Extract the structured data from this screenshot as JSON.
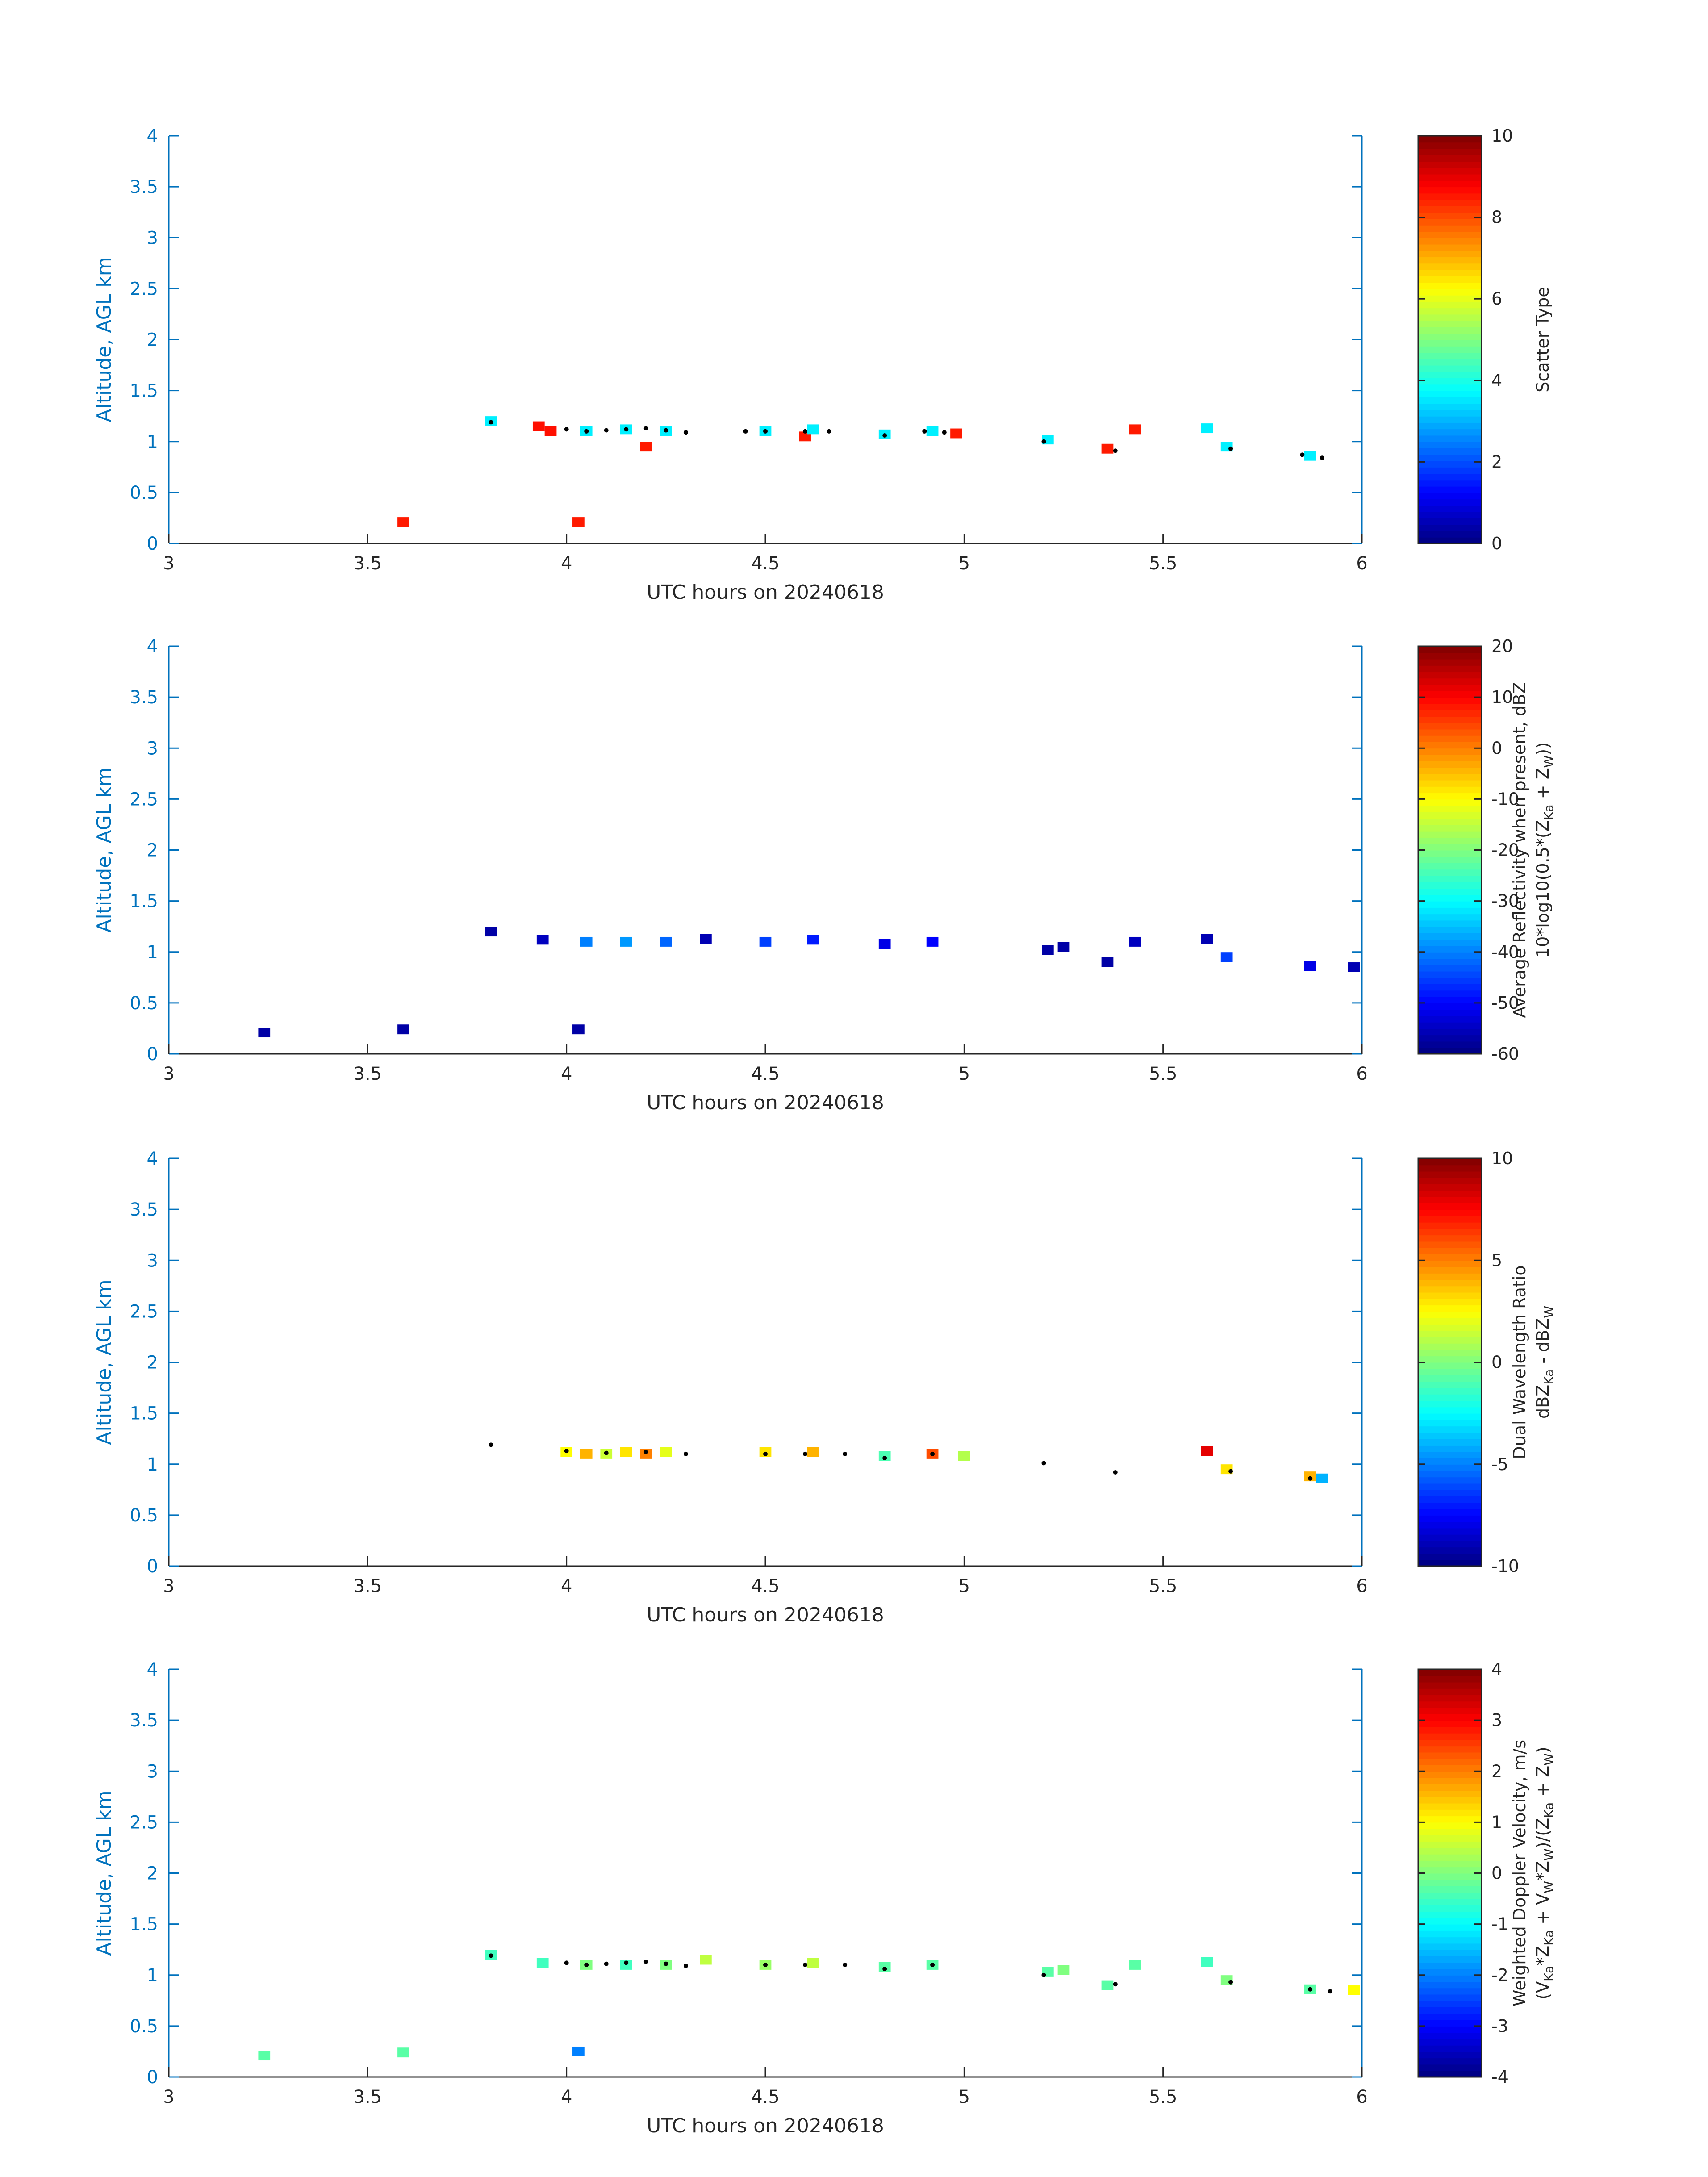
{
  "chart_data": [
    {
      "type": "heatmap",
      "xlabel": "UTC hours on 20240618",
      "ylabel": "Altitude, AGL km",
      "xlim": [
        3,
        6
      ],
      "ylim": [
        0,
        4
      ],
      "xticks": [
        "3",
        "3.5",
        "4",
        "4.5",
        "5",
        "5.5",
        "6"
      ],
      "yticks": [
        "0",
        "0.5",
        "1",
        "1.5",
        "2",
        "2.5",
        "3",
        "3.5",
        "4"
      ],
      "colorbar": {
        "label": [
          "Scatter Type"
        ],
        "range": [
          0,
          10
        ],
        "ticks": [
          "0",
          "2",
          "4",
          "6",
          "8",
          "10"
        ]
      },
      "cells": [
        [
          3.81,
          1.2,
          3.6
        ],
        [
          3.59,
          0.21,
          8.5
        ],
        [
          4.03,
          0.21,
          8.5
        ],
        [
          3.93,
          1.15,
          8.6
        ],
        [
          3.96,
          1.1,
          8.6
        ],
        [
          4.2,
          0.95,
          8.5
        ],
        [
          4.6,
          1.05,
          8.5
        ],
        [
          4.98,
          1.08,
          8.5
        ],
        [
          5.36,
          0.93,
          8.5
        ],
        [
          5.43,
          1.12,
          8.5
        ],
        [
          4.05,
          1.1,
          3.6
        ],
        [
          4.15,
          1.12,
          3.6
        ],
        [
          4.25,
          1.1,
          3.6
        ],
        [
          4.5,
          1.1,
          3.6
        ],
        [
          4.62,
          1.12,
          3.6
        ],
        [
          4.8,
          1.07,
          3.6
        ],
        [
          4.92,
          1.1,
          3.6
        ],
        [
          5.21,
          1.02,
          3.6
        ],
        [
          5.61,
          1.13,
          3.6
        ],
        [
          5.66,
          0.95,
          3.6
        ],
        [
          5.87,
          0.86,
          3.6
        ]
      ],
      "dots": [
        [
          3.81,
          1.19
        ],
        [
          4.0,
          1.12
        ],
        [
          4.05,
          1.1
        ],
        [
          4.1,
          1.11
        ],
        [
          4.15,
          1.12
        ],
        [
          4.2,
          1.13
        ],
        [
          4.25,
          1.11
        ],
        [
          4.3,
          1.09
        ],
        [
          4.45,
          1.1
        ],
        [
          4.5,
          1.1
        ],
        [
          4.6,
          1.1
        ],
        [
          4.66,
          1.1
        ],
        [
          4.8,
          1.06
        ],
        [
          4.9,
          1.1
        ],
        [
          4.95,
          1.09
        ],
        [
          5.2,
          1.0
        ],
        [
          5.38,
          0.91
        ],
        [
          5.67,
          0.93
        ],
        [
          5.85,
          0.87
        ],
        [
          5.9,
          0.84
        ]
      ]
    },
    {
      "type": "heatmap",
      "xlabel": "UTC hours on 20240618",
      "ylabel": "Altitude, AGL km",
      "xlim": [
        3,
        6
      ],
      "ylim": [
        0,
        4
      ],
      "xticks": [
        "3",
        "3.5",
        "4",
        "4.5",
        "5",
        "5.5",
        "6"
      ],
      "yticks": [
        "0",
        "0.5",
        "1",
        "1.5",
        "2",
        "2.5",
        "3",
        "3.5",
        "4"
      ],
      "colorbar": {
        "label": [
          "Average Reflectivity when present, dBZ",
          "10*log10(0.5*(Z",
          "Ka",
          " + Z",
          "W",
          "))"
        ],
        "range": [
          -60,
          20
        ],
        "ticks": [
          "-60",
          "-50",
          "-40",
          "-30",
          "-20",
          "-10",
          "0",
          "10",
          "20"
        ]
      },
      "cells": [
        [
          3.24,
          0.21,
          -57
        ],
        [
          3.59,
          0.24,
          -57
        ],
        [
          4.03,
          0.24,
          -57
        ],
        [
          3.81,
          1.2,
          -57
        ],
        [
          3.94,
          1.12,
          -55
        ],
        [
          4.05,
          1.1,
          -40
        ],
        [
          4.15,
          1.1,
          -38
        ],
        [
          4.25,
          1.1,
          -42
        ],
        [
          4.35,
          1.13,
          -56
        ],
        [
          4.5,
          1.1,
          -45
        ],
        [
          4.62,
          1.12,
          -48
        ],
        [
          4.8,
          1.08,
          -52
        ],
        [
          4.92,
          1.1,
          -50
        ],
        [
          5.21,
          1.02,
          -57
        ],
        [
          5.25,
          1.05,
          -57
        ],
        [
          5.36,
          0.9,
          -57
        ],
        [
          5.43,
          1.1,
          -55
        ],
        [
          5.61,
          1.13,
          -56
        ],
        [
          5.66,
          0.95,
          -45
        ],
        [
          5.87,
          0.86,
          -52
        ],
        [
          5.98,
          0.85,
          -56
        ]
      ],
      "dots": []
    },
    {
      "type": "heatmap",
      "xlabel": "UTC hours on 20240618",
      "ylabel": "Altitude, AGL km",
      "xlim": [
        3,
        6
      ],
      "ylim": [
        0,
        4
      ],
      "xticks": [
        "3",
        "3.5",
        "4",
        "4.5",
        "5",
        "5.5",
        "6"
      ],
      "yticks": [
        "0",
        "0.5",
        "1",
        "1.5",
        "2",
        "2.5",
        "3",
        "3.5",
        "4"
      ],
      "colorbar": {
        "label": [
          "Dual Wavelength Ratio",
          "dBZ",
          "Ka",
          " - dBZ",
          "W"
        ],
        "range": [
          -10,
          10
        ],
        "ticks": [
          "-10",
          "-5",
          "0",
          "5",
          "10"
        ]
      },
      "cells": [
        [
          4.0,
          1.12,
          2.5
        ],
        [
          4.05,
          1.1,
          4.0
        ],
        [
          4.1,
          1.1,
          1.5
        ],
        [
          4.15,
          1.12,
          3.0
        ],
        [
          4.2,
          1.1,
          5.0
        ],
        [
          4.25,
          1.12,
          2.0
        ],
        [
          4.5,
          1.12,
          3.0
        ],
        [
          4.62,
          1.12,
          4.0
        ],
        [
          4.8,
          1.08,
          -1.0
        ],
        [
          4.92,
          1.1,
          6.0
        ],
        [
          5.0,
          1.08,
          1.0
        ],
        [
          5.61,
          1.13,
          8.0
        ],
        [
          5.66,
          0.95,
          3.0
        ],
        [
          5.87,
          0.88,
          4.0
        ],
        [
          5.9,
          0.86,
          -4.0
        ]
      ],
      "dots": [
        [
          3.81,
          1.19
        ],
        [
          4.0,
          1.13
        ],
        [
          4.1,
          1.11
        ],
        [
          4.2,
          1.12
        ],
        [
          4.3,
          1.1
        ],
        [
          4.5,
          1.1
        ],
        [
          4.6,
          1.1
        ],
        [
          4.7,
          1.1
        ],
        [
          4.8,
          1.06
        ],
        [
          4.92,
          1.1
        ],
        [
          5.2,
          1.01
        ],
        [
          5.38,
          0.92
        ],
        [
          5.67,
          0.93
        ],
        [
          5.87,
          0.86
        ]
      ]
    },
    {
      "type": "heatmap",
      "xlabel": "UTC hours on 20240618",
      "ylabel": "Altitude, AGL km",
      "xlim": [
        3,
        6
      ],
      "ylim": [
        0,
        4
      ],
      "xticks": [
        "3",
        "3.5",
        "4",
        "4.5",
        "5",
        "5.5",
        "6"
      ],
      "yticks": [
        "0",
        "0.5",
        "1",
        "1.5",
        "2",
        "2.5",
        "3",
        "3.5",
        "4"
      ],
      "colorbar": {
        "label": [
          "Weighted Doppler Velocity, m/s",
          "(V",
          "Ka",
          "*Z",
          "Ka",
          " + V",
          "W",
          "*Z",
          "W",
          ")/(Z",
          "Ka",
          " + Z",
          "W",
          ")"
        ],
        "range": [
          -4,
          4
        ],
        "ticks": [
          "-4",
          "-3",
          "-2",
          "-1",
          "0",
          "1",
          "2",
          "3",
          "4"
        ]
      },
      "cells": [
        [
          3.24,
          0.21,
          -0.3
        ],
        [
          3.59,
          0.24,
          -0.3
        ],
        [
          4.03,
          0.25,
          -2.0
        ],
        [
          3.81,
          1.2,
          -0.5
        ],
        [
          3.94,
          1.12,
          -0.5
        ],
        [
          4.05,
          1.1,
          0.0
        ],
        [
          4.15,
          1.1,
          -0.5
        ],
        [
          4.25,
          1.1,
          0.0
        ],
        [
          4.35,
          1.15,
          0.5
        ],
        [
          4.5,
          1.1,
          0.2
        ],
        [
          4.62,
          1.12,
          0.5
        ],
        [
          4.8,
          1.08,
          -0.3
        ],
        [
          4.92,
          1.1,
          -0.3
        ],
        [
          5.21,
          1.03,
          -0.3
        ],
        [
          5.25,
          1.05,
          0.0
        ],
        [
          5.36,
          0.9,
          -0.3
        ],
        [
          5.43,
          1.1,
          -0.3
        ],
        [
          5.61,
          1.13,
          -0.5
        ],
        [
          5.66,
          0.95,
          0.0
        ],
        [
          5.87,
          0.86,
          -0.3
        ],
        [
          5.98,
          0.85,
          1.0
        ]
      ],
      "dots": [
        [
          3.81,
          1.19
        ],
        [
          4.0,
          1.12
        ],
        [
          4.05,
          1.1
        ],
        [
          4.1,
          1.11
        ],
        [
          4.15,
          1.12
        ],
        [
          4.2,
          1.13
        ],
        [
          4.25,
          1.11
        ],
        [
          4.3,
          1.09
        ],
        [
          4.5,
          1.1
        ],
        [
          4.6,
          1.1
        ],
        [
          4.7,
          1.1
        ],
        [
          4.8,
          1.06
        ],
        [
          4.92,
          1.1
        ],
        [
          5.2,
          1.0
        ],
        [
          5.38,
          0.91
        ],
        [
          5.67,
          0.93
        ],
        [
          5.87,
          0.86
        ],
        [
          5.92,
          0.84
        ]
      ]
    }
  ]
}
